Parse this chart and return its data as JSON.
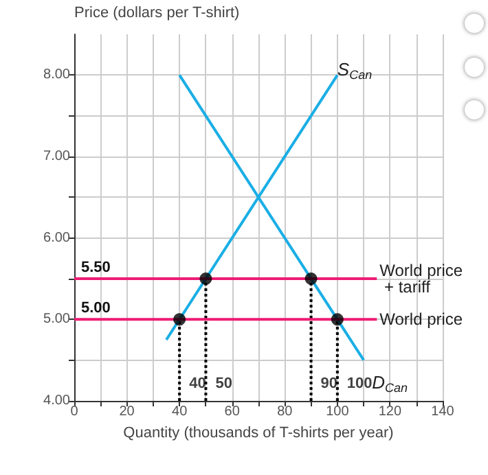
{
  "chart_data": {
    "type": "line",
    "ylabel": "Price (dollars per T-shirt)",
    "xlabel": "Quantity (thousands of T-shirts per year)",
    "xlim": [
      0,
      140
    ],
    "xticks": [
      0,
      {
        "value": 10,
        "label": null
      },
      20,
      {
        "value": 30,
        "label": null
      },
      40,
      {
        "value": 50,
        "label": null
      },
      60,
      {
        "value": 70,
        "label": null
      },
      80,
      {
        "value": 90,
        "label": null
      },
      100,
      {
        "value": 110,
        "label": null
      },
      120,
      {
        "value": 130,
        "label": null
      },
      140
    ],
    "ylim": [
      4,
      8.5
    ],
    "yticks": [
      {
        "value": 4,
        "label": "4.00"
      },
      {
        "value": 4.5,
        "label": null
      },
      {
        "value": 5,
        "label": "5.00"
      },
      {
        "value": 5.5,
        "label": null
      },
      {
        "value": 6,
        "label": "6.00"
      },
      {
        "value": 6.5,
        "label": null
      },
      {
        "value": 7,
        "label": "7.00"
      },
      {
        "value": 7.5,
        "label": null
      },
      {
        "value": 8,
        "label": "8.00"
      }
    ],
    "grid": true,
    "series": [
      {
        "name": "S$_{Can}$",
        "color": "#1aaee5",
        "x": [
          35,
          100
        ],
        "values": [
          4.75,
          8
        ],
        "marker": "none",
        "line_style": "solid"
      },
      {
        "name": "D$_{Can}$",
        "color": "#1aaee5",
        "x": [
          40,
          110
        ],
        "values": [
          8,
          4.5
        ],
        "marker": "none",
        "line_style": "solid"
      },
      {
        "name": "World price + tariff",
        "color": "#ee1c74",
        "x": [
          0,
          115
        ],
        "values": [
          5.5,
          5.5
        ],
        "value_labels": [
          "5.50",
          null
        ],
        "marker": "none",
        "line_style": "solid"
      },
      {
        "name": "World price",
        "color": "#ee1c74",
        "x": [
          0,
          115
        ],
        "values": [
          5,
          5
        ],
        "value_labels": [
          "5.00",
          null
        ],
        "marker": "none",
        "line_style": "solid"
      },
      {
        "type": "line",
        "color": "#000000",
        "x": [
          40,
          40
        ],
        "values": [
          4,
          5
        ],
        "marker": "none",
        "line_style": "dotted"
      },
      {
        "type": "line",
        "color": "#000000",
        "x": [
          50,
          50
        ],
        "values": [
          4,
          5.5
        ],
        "marker": "none",
        "line_style": "dotted"
      },
      {
        "type": "line",
        "color": "#000000",
        "x": [
          90,
          90
        ],
        "values": [
          4,
          5.5
        ],
        "marker": "none",
        "line_style": "dotted"
      },
      {
        "type": "line",
        "color": "#000000",
        "x": [
          100,
          100
        ],
        "values": [
          4,
          5
        ],
        "marker": "none",
        "line_style": "dotted"
      },
      {
        "type": "scatter",
        "color": "#000000",
        "x": [
          40,
          50,
          90,
          100
        ],
        "values": [
          5,
          5.5,
          5.5,
          5
        ],
        "marker": "circle"
      }
    ],
    "annotations": [
      {
        "text": "40",
        "x": 40,
        "y": 4
      },
      {
        "text": "50",
        "x": 50,
        "y": 4
      },
      {
        "text": "90",
        "x": 90,
        "y": 4
      },
      {
        "text": "100",
        "x": 100,
        "y": 4
      }
    ]
  }
}
